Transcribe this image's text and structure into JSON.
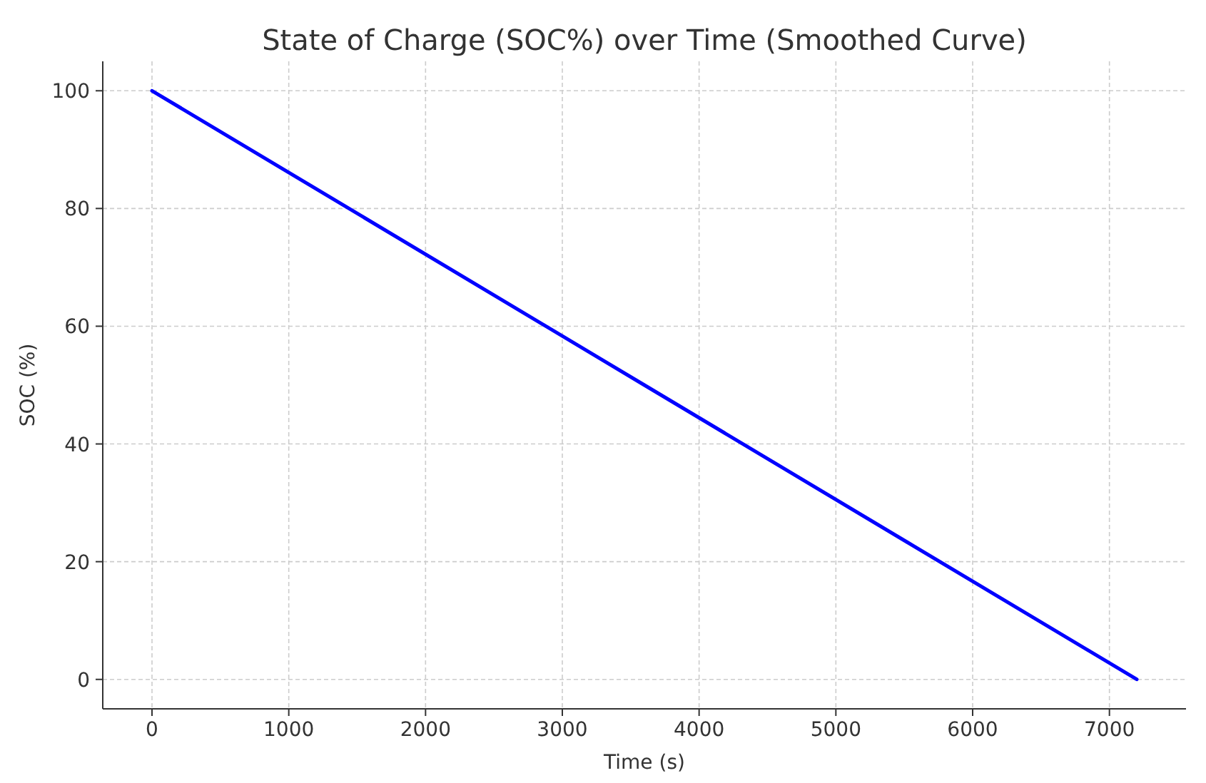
{
  "chart_data": {
    "type": "line",
    "title": "State of Charge (SOC%) over Time (Smoothed Curve)",
    "xlabel": "Time (s)",
    "ylabel": "SOC (%)",
    "x": [
      0,
      3600,
      7200
    ],
    "series": [
      {
        "color": "#0000ff",
        "values": [
          100,
          50,
          0
        ]
      }
    ],
    "xlim": [
      -360,
      7560
    ],
    "xticks": [
      0,
      1000,
      2000,
      3000,
      4000,
      5000,
      6000,
      7000
    ],
    "ylim": [
      -5,
      105
    ],
    "yticks": [
      0,
      20,
      40,
      60,
      80,
      100
    ],
    "grid": true,
    "marker": "none",
    "line_style": "solid"
  }
}
